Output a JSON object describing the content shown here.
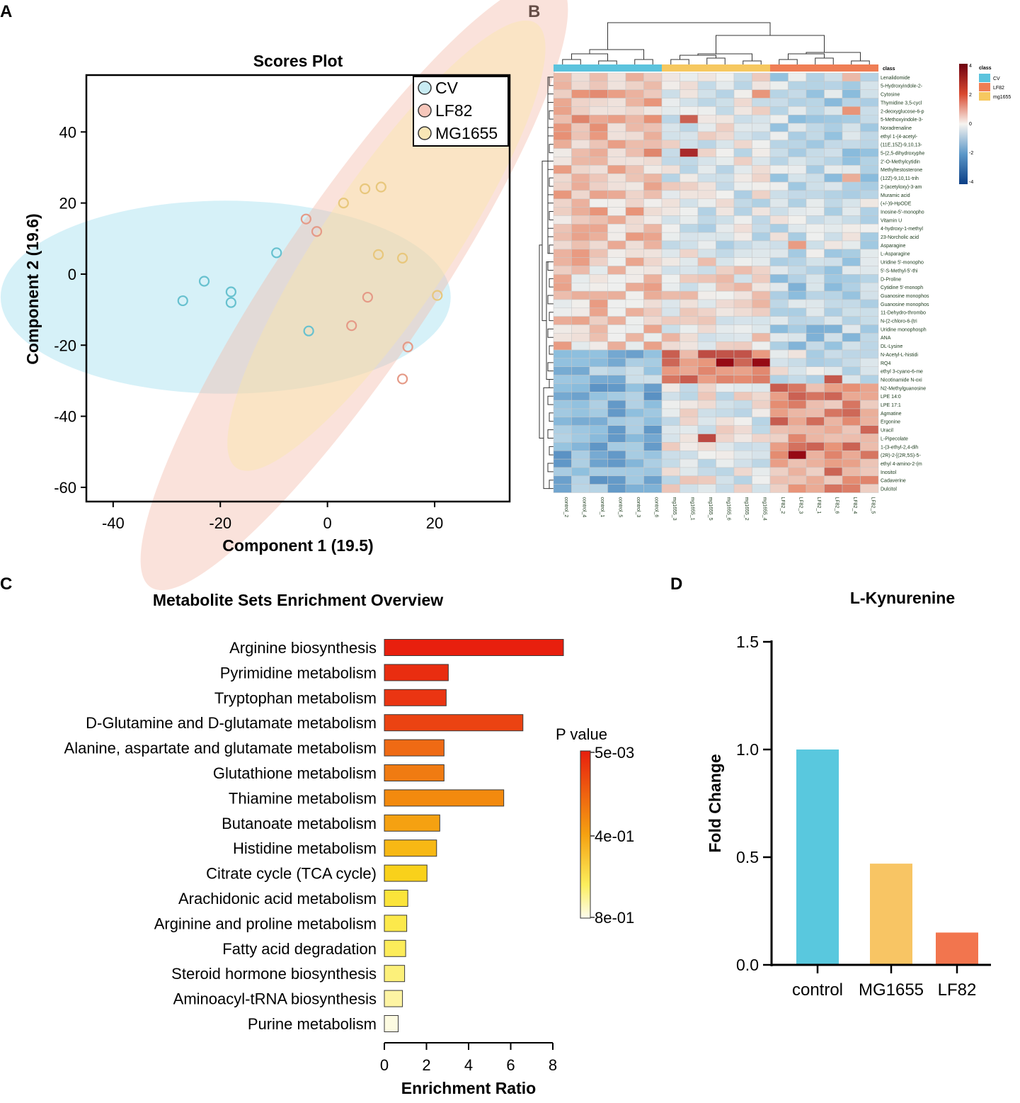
{
  "panels": {
    "a": "A",
    "b": "B",
    "c": "C",
    "d": "D"
  },
  "chart_data": [
    {
      "panel": "A",
      "type": "scatter",
      "title": "Scores Plot",
      "xlabel": "Component 1 (19.5)",
      "ylabel": "Component 2 (19.6)",
      "xlim": [
        -45,
        34
      ],
      "ylim": [
        -64,
        56
      ],
      "xticks": [
        -40,
        -20,
        0,
        20
      ],
      "yticks": [
        40,
        20,
        0,
        -20,
        -40,
        -60
      ],
      "legend_position": "top-right",
      "series": [
        {
          "name": "CV",
          "color": "#67c1cf",
          "ellipse_color": "#9edeef",
          "points": [
            [
              -27,
              -7.5
            ],
            [
              -23,
              -2
            ],
            [
              -18,
              -5
            ],
            [
              -18,
              -8
            ],
            [
              -9.5,
              6
            ],
            [
              -3.5,
              -16
            ]
          ]
        },
        {
          "name": "LF82",
          "color": "#e59a87",
          "ellipse_color": "#f4b9a9",
          "points": [
            [
              -4,
              15.5
            ],
            [
              -2,
              12
            ],
            [
              7.5,
              -6.5
            ],
            [
              4.5,
              -14.5
            ],
            [
              15,
              -20.5
            ],
            [
              14,
              -29.5
            ]
          ]
        },
        {
          "name": "MG1655",
          "color": "#e8c77c",
          "ellipse_color": "#fbe7a8",
          "points": [
            [
              3,
              20
            ],
            [
              7,
              24
            ],
            [
              10,
              24.5
            ],
            [
              9.5,
              5.5
            ],
            [
              14,
              4.5
            ],
            [
              20.5,
              -6
            ]
          ]
        }
      ]
    },
    {
      "panel": "B",
      "type": "heatmap",
      "class_header": "class",
      "legend": {
        "title": "class",
        "items": [
          {
            "label": "CV",
            "color": "#5bc3dd"
          },
          {
            "label": "LF82",
            "color": "#ef7e55"
          },
          {
            "label": "mg1655",
            "color": "#f6c860"
          }
        ]
      },
      "colorbar_ticks": [
        "4",
        "2",
        "0",
        "-2",
        "-4"
      ],
      "samples": [
        "control_2",
        "control_4",
        "control_1",
        "control_5",
        "control_3",
        "control_6",
        "mg1655_3",
        "mg1655_1",
        "mg1655_5",
        "mg1655_6",
        "mg1655_2",
        "mg1655_4",
        "LF82_2",
        "LF82_3",
        "LF82_1",
        "LF82_6",
        "LF82_4",
        "LF82_5"
      ],
      "sample_class": [
        "CV",
        "CV",
        "CV",
        "CV",
        "CV",
        "CV",
        "mg1655",
        "mg1655",
        "mg1655",
        "mg1655",
        "mg1655",
        "mg1655",
        "LF82",
        "LF82",
        "LF82",
        "LF82",
        "LF82",
        "LF82"
      ],
      "metabolites": [
        "Lenalidomide",
        "5-Hydroxyindole-2-",
        "Cytosine",
        "Thymidine 3,5-cycl",
        "2-deoxyglucose-6-p",
        "5-Methoxyindole-3-",
        "Noradrenaline",
        "ethyl 1-(4-acetyl-",
        "(11E,15Z)-9,10,13-",
        "5-(2,5-dihydroxyphe",
        "2'-O-Methylcytidin",
        "Methyltestosterone",
        "(12Z)-9,10,11-trih",
        "2-(acetyloxy)-3-am",
        "Muramic acid",
        "(+/-)9-HpODE",
        "Inosine-5'-monopho",
        "Vitamin U",
        "4-hydroxy-1-methyl",
        "23-Norcholic acid",
        "Asparagine",
        "L-Asparagine",
        "Uridine 5'-monopho",
        "5'-S-Methyl-5'-thi",
        "D-Proline",
        "Cytidine 5'-monoph",
        "Guanosine monophos",
        "Guanosine monophos",
        "11-Dehydro-thrombo",
        "N-(2-chloro-6-(tri",
        "Uridine monophosph",
        "ANA",
        "DL-Lysine",
        "N-Acetyl-L-histidi",
        "RQ4",
        "ethyl 3-cyano-6-me",
        "Nicotinamide N-oxi",
        "N2-Methylguanosine",
        "LPE 14:0",
        "LPE 17:1",
        "Agmatine",
        "Ergonine",
        "Uracil",
        "L-Pipecolate",
        "1-(3-ethyl-2,4-dih",
        "(2R)-2-[(2R,5S)-5-",
        "ethyl 4-amino-2-(m",
        "Inositol",
        "Cadaverine",
        "Dulcitol"
      ]
    },
    {
      "panel": "C",
      "type": "bar",
      "orientation": "horizontal",
      "title": "Metabolite Sets Enrichment Overview",
      "xlabel": "Enrichment Ratio",
      "xlim": [
        0,
        8.5
      ],
      "xticks": [
        0,
        2,
        4,
        6,
        8
      ],
      "colorbar_title": "P value",
      "colorbar_ticks": [
        "5e-03",
        "4e-01",
        "8e-01"
      ],
      "categories": [
        "Arginine biosynthesis",
        "Pyrimidine metabolism",
        "Tryptophan metabolism",
        "D-Glutamine and D-glutamate metabolism",
        "Alanine, aspartate and glutamate metabolism",
        "Glutathione metabolism",
        "Thiamine metabolism",
        "Butanoate metabolism",
        "Histidine metabolism",
        "Citrate cycle (TCA cycle)",
        "Arachidonic acid metabolism",
        "Arginine and proline metabolism",
        "Fatty acid degradation",
        "Steroid hormone biosynthesis",
        "Aminoacyl-tRNA biosynthesis",
        "Purine metabolism"
      ],
      "values": [
        8.4,
        3.0,
        2.9,
        6.5,
        2.8,
        2.8,
        5.6,
        2.6,
        2.45,
        2.0,
        1.1,
        1.05,
        1.0,
        0.95,
        0.85,
        0.65
      ],
      "colors": [
        "#e81f0e",
        "#e92d10",
        "#ea3512",
        "#eb4312",
        "#ef6a14",
        "#f07b12",
        "#f38a0e",
        "#f5a111",
        "#f7b814",
        "#f9d11b",
        "#fbe43a",
        "#fce94b",
        "#fcec5a",
        "#fcf07a",
        "#fdf4a3",
        "#fdfbe1"
      ]
    },
    {
      "panel": "D",
      "type": "bar",
      "title": "L-Kynurenine",
      "ylabel": "Fold Change",
      "ylim": [
        0,
        1.5
      ],
      "yticks": [
        "0.0",
        "0.5",
        "1.0",
        "1.5"
      ],
      "categories": [
        "control",
        "MG1655",
        "LF82"
      ],
      "values": [
        1.0,
        0.47,
        0.15
      ],
      "colors": [
        "#59c8de",
        "#f8c564",
        "#f2754e"
      ]
    }
  ]
}
